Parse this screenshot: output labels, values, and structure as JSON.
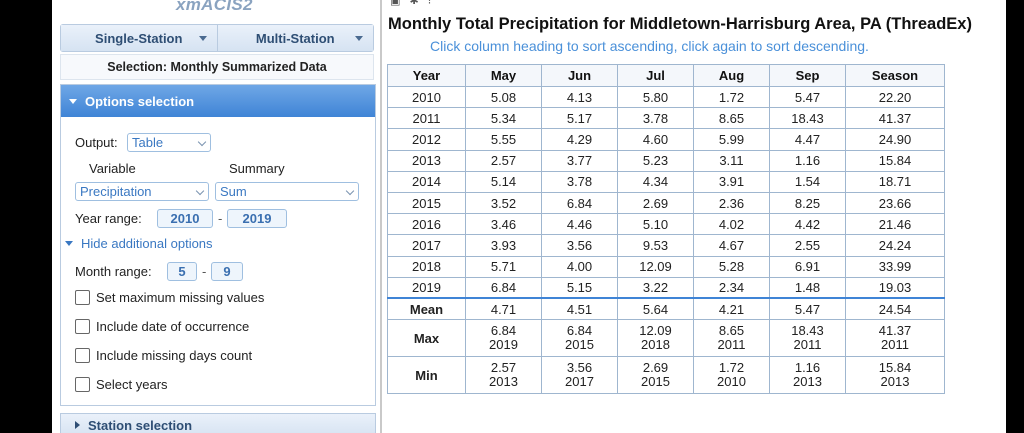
{
  "app": {
    "title": "xmACIS2"
  },
  "station_tabs": [
    {
      "label": "Single-Station"
    },
    {
      "label": "Multi-Station"
    }
  ],
  "selection": {
    "label": "Selection: Monthly Summarized Data"
  },
  "options": {
    "header": "Options selection",
    "output_label": "Output:",
    "output_value": "Table",
    "variable_label": "Variable",
    "summary_label": "Summary",
    "variable_value": "Precipitation",
    "summary_value": "Sum",
    "year_range_label": "Year range:",
    "year_start": "2010",
    "year_end": "2019",
    "range_dash": "-",
    "hide_options_link": "Hide additional options",
    "month_range_label": "Month range:",
    "month_start": "5",
    "month_end": "9",
    "checkboxes": [
      {
        "label": "Set maximum missing values",
        "checked": false
      },
      {
        "label": "Include date of occurrence",
        "checked": false
      },
      {
        "label": "Include missing days count",
        "checked": false
      },
      {
        "label": "Select years",
        "checked": false
      }
    ]
  },
  "station_selection": {
    "label": "Station selection"
  },
  "results": {
    "title": "Monthly Total Precipitation for Middletown-Harrisburg Area, PA (ThreadEx)",
    "subtitle": "Click column heading to sort ascending, click again to sort descending.",
    "columns": [
      "Year",
      "May",
      "Jun",
      "Jul",
      "Aug",
      "Sep",
      "Season"
    ],
    "rows": [
      [
        "2010",
        "5.08",
        "4.13",
        "5.80",
        "1.72",
        "5.47",
        "22.20"
      ],
      [
        "2011",
        "5.34",
        "5.17",
        "3.78",
        "8.65",
        "18.43",
        "41.37"
      ],
      [
        "2012",
        "5.55",
        "4.29",
        "4.60",
        "5.99",
        "4.47",
        "24.90"
      ],
      [
        "2013",
        "2.57",
        "3.77",
        "5.23",
        "3.11",
        "1.16",
        "15.84"
      ],
      [
        "2014",
        "5.14",
        "3.78",
        "4.34",
        "3.91",
        "1.54",
        "18.71"
      ],
      [
        "2015",
        "3.52",
        "6.84",
        "2.69",
        "2.36",
        "8.25",
        "23.66"
      ],
      [
        "2016",
        "3.46",
        "4.46",
        "5.10",
        "4.02",
        "4.42",
        "21.46"
      ],
      [
        "2017",
        "3.93",
        "3.56",
        "9.53",
        "4.67",
        "2.55",
        "24.24"
      ],
      [
        "2018",
        "5.71",
        "4.00",
        "12.09",
        "5.28",
        "6.91",
        "33.99"
      ],
      [
        "2019",
        "6.84",
        "5.15",
        "3.22",
        "2.34",
        "1.48",
        "19.03"
      ]
    ],
    "stats": {
      "mean": {
        "label": "Mean",
        "values": [
          "4.71",
          "4.51",
          "5.64",
          "4.21",
          "5.47",
          "24.54"
        ]
      },
      "max": {
        "label": "Max",
        "values": [
          "6.84",
          "6.84",
          "12.09",
          "8.65",
          "18.43",
          "41.37"
        ],
        "years": [
          "2019",
          "2015",
          "2018",
          "2011",
          "2011",
          "2011"
        ]
      },
      "min": {
        "label": "Min",
        "values": [
          "2.57",
          "3.56",
          "2.69",
          "1.72",
          "1.16",
          "15.84"
        ],
        "years": [
          "2013",
          "2017",
          "2015",
          "2010",
          "2013",
          "2013"
        ]
      }
    }
  }
}
